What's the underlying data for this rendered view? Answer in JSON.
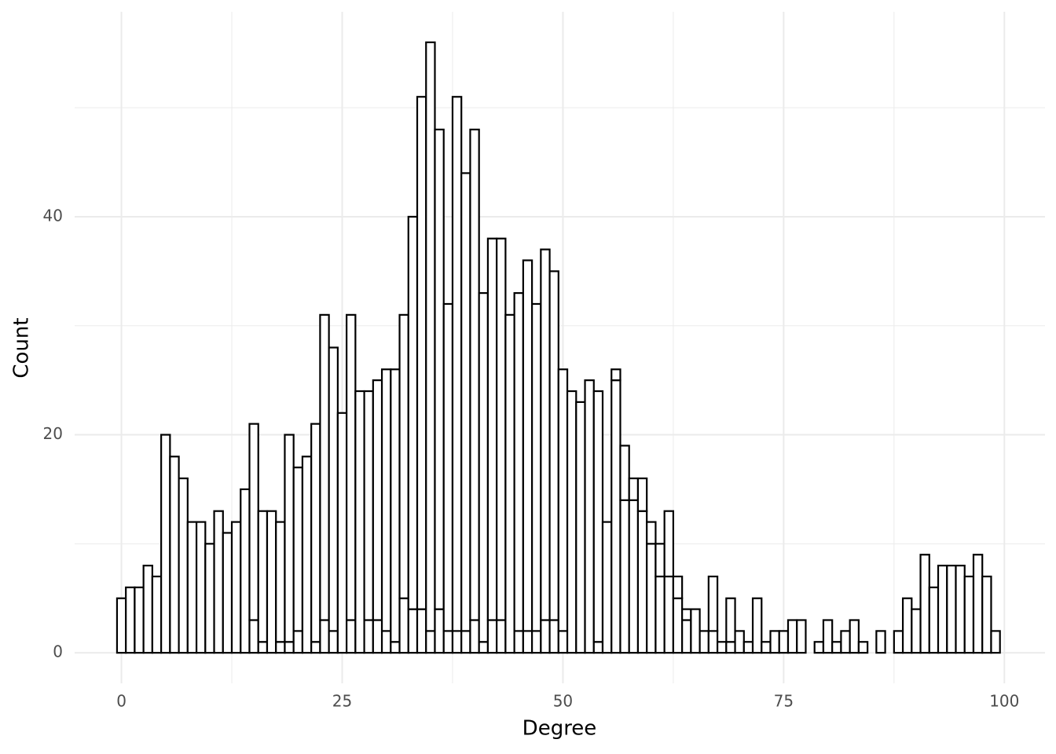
{
  "chart_data": {
    "type": "histogram",
    "x_label": "Degree",
    "y_label": "Count",
    "bins": [
      -0.5,
      0.5,
      1.5,
      2.5,
      3.5,
      4.5,
      5.5,
      6.5,
      7.5,
      8.5,
      9.5,
      10.5,
      11.5,
      12.5,
      13.5,
      14.5,
      15.5,
      16.5,
      17.5,
      18.5,
      19.5,
      20.5,
      21.5,
      22.5,
      23.5,
      24.5,
      25.5,
      26.5,
      27.5,
      28.5,
      29.5,
      30.5,
      31.5,
      32.5,
      33.5,
      34.5,
      35.5,
      36.5,
      37.5,
      38.5,
      39.5,
      40.5,
      41.5,
      42.5,
      43.5,
      44.5,
      45.5,
      46.5,
      47.5,
      48.5,
      49.5,
      50.5,
      51.5,
      52.5,
      53.5,
      54.5,
      55.5,
      56.5,
      57.5,
      58.5,
      59.5,
      60.5,
      61.5,
      62.5,
      63.5,
      64.5,
      65.5,
      66.5,
      67.5,
      68.5,
      69.5,
      70.5,
      71.5,
      72.5,
      73.5,
      74.5,
      75.5,
      76.5,
      77.5,
      78.5,
      79.5,
      80.5,
      81.5,
      82.5,
      83.5,
      84.5,
      85.5,
      86.5,
      87.5,
      88.5,
      89.5,
      90.5,
      91.5,
      92.5,
      93.5,
      94.5,
      95.5,
      96.5,
      97.5,
      98.5,
      99.5
    ],
    "stacked": true,
    "series": [
      {
        "color": "#ffffff",
        "values": [
          0,
          0,
          0,
          0,
          0,
          0,
          0,
          0,
          0,
          0,
          0,
          0,
          0,
          0,
          0,
          3,
          1,
          0,
          1,
          1,
          2,
          0,
          1,
          3,
          2,
          0,
          3,
          0,
          3,
          3,
          2,
          1,
          5,
          4,
          4,
          2,
          4,
          2,
          2,
          2,
          3,
          1,
          3,
          3,
          0,
          2,
          2,
          2,
          3,
          3,
          2,
          0,
          0,
          0,
          1,
          0,
          25,
          14,
          14,
          13,
          10,
          7,
          7,
          5,
          3,
          0,
          0,
          2,
          0,
          1,
          0,
          0,
          0,
          0,
          0,
          0,
          0,
          0,
          0,
          0,
          0,
          0,
          0,
          0,
          0,
          0,
          0,
          0,
          0,
          0,
          0,
          0,
          0,
          0,
          0,
          0,
          0,
          0,
          0,
          0
        ]
      },
      {
        "color": "#ffffff",
        "values": [
          5,
          6,
          6,
          8,
          7,
          20,
          18,
          16,
          12,
          12,
          10,
          13,
          11,
          12,
          15,
          18,
          12,
          13,
          11,
          19,
          15,
          18,
          20,
          28,
          26,
          22,
          28,
          24,
          21,
          22,
          24,
          25,
          26,
          36,
          47,
          54,
          44,
          30,
          49,
          42,
          45,
          32,
          35,
          35,
          31,
          31,
          34,
          30,
          34,
          32,
          24,
          24,
          23,
          25,
          23,
          12,
          1,
          5,
          2,
          3,
          2,
          3,
          6,
          2,
          1,
          4,
          2,
          5,
          1,
          4,
          2,
          1,
          5,
          1,
          2,
          2,
          3,
          3,
          0,
          1,
          3,
          1,
          2,
          3,
          1,
          0,
          2,
          0,
          2,
          5,
          4,
          9,
          6,
          8,
          8,
          8,
          7,
          9,
          7,
          2
        ]
      }
    ],
    "outline_color": "#000000",
    "xlim": [
      -5.3,
      104.6
    ],
    "ylim": [
      -2.8,
      58.8
    ],
    "xticks": [
      0,
      25,
      50,
      75,
      100
    ],
    "yticks": [
      0,
      20,
      40
    ],
    "grid": true
  }
}
